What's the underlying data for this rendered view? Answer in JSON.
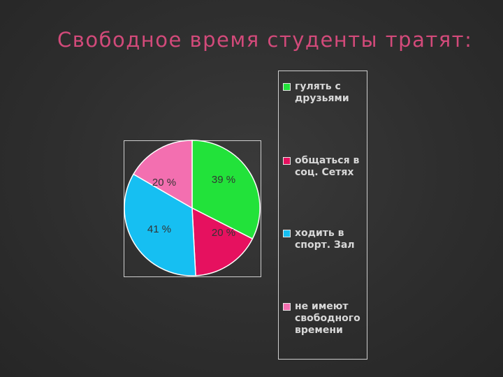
{
  "slide": {
    "title": "Свободное время студенты тратят:",
    "title_color": "#d24a7a",
    "background": "#2e2e2e"
  },
  "chart_data": {
    "type": "pie",
    "title": "",
    "slices": [
      {
        "name": "гулять с друзьями",
        "value": 39,
        "label": "39 %",
        "color": "#22e23a"
      },
      {
        "name": "общаться в соц. Сетях",
        "value": 20,
        "label": "20 %",
        "color": "#e6115f"
      },
      {
        "name": "ходить в спорт. Зал",
        "value": 41,
        "label": "41 %",
        "color": "#16bff2"
      },
      {
        "name": "не имеют свободного времени",
        "value": 20,
        "label": "20 %",
        "color": "#f36fb0"
      }
    ],
    "legend": {
      "placement": "right",
      "entries": [
        "гулять с друзьями",
        "общаться в соц. Сетях",
        "ходить в спорт. Зал",
        "не имеют свободного времени"
      ]
    },
    "start_angle_deg": 0,
    "direction": "clockwise"
  }
}
